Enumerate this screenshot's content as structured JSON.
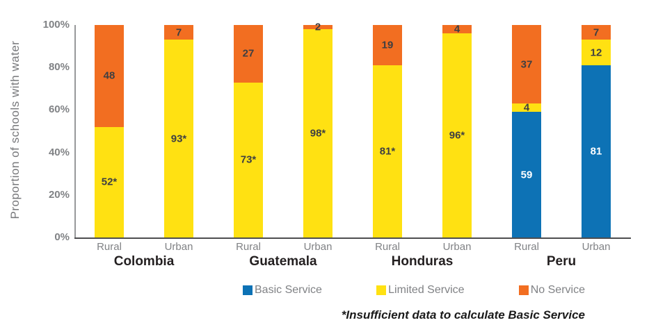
{
  "chart_data": {
    "type": "bar",
    "subtype": "stacked-bar",
    "title": "",
    "xlabel": "",
    "ylabel": "Proportion of schools with water",
    "ylim": [
      0,
      100
    ],
    "grid": false,
    "legend_position": "bottom",
    "yticks": [
      {
        "value": 0,
        "label": "0%"
      },
      {
        "value": 20,
        "label": "20%"
      },
      {
        "value": 40,
        "label": "40%"
      },
      {
        "value": 60,
        "label": "60%"
      },
      {
        "value": 80,
        "label": "80%"
      },
      {
        "value": 100,
        "label": "100%"
      }
    ],
    "series": [
      {
        "name": "Basic Service",
        "color": "#0D72B5",
        "label_color": "#FFFFFF"
      },
      {
        "name": "Limited Service",
        "color": "#FFE112",
        "label_color": "#3E3F42"
      },
      {
        "name": "No Service",
        "color": "#F26E21",
        "label_color": "#3E3F42"
      }
    ],
    "group_labels": [
      "Colombia",
      "Guatemala",
      "Honduras",
      "Peru"
    ],
    "bars": [
      {
        "group": "Colombia",
        "location": "Rural",
        "segments": [
          {
            "series": "Limited Service",
            "value": 52,
            "label": "52*"
          },
          {
            "series": "No Service",
            "value": 48,
            "label": "48"
          }
        ]
      },
      {
        "group": "Colombia",
        "location": "Urban",
        "segments": [
          {
            "series": "Limited Service",
            "value": 93,
            "label": "93*"
          },
          {
            "series": "No Service",
            "value": 7,
            "label": "7"
          }
        ]
      },
      {
        "group": "Guatemala",
        "location": "Rural",
        "segments": [
          {
            "series": "Limited Service",
            "value": 73,
            "label": "73*"
          },
          {
            "series": "No Service",
            "value": 27,
            "label": "27"
          }
        ]
      },
      {
        "group": "Guatemala",
        "location": "Urban",
        "segments": [
          {
            "series": "Limited Service",
            "value": 98,
            "label": "98*"
          },
          {
            "series": "No Service",
            "value": 2,
            "label": "2"
          }
        ]
      },
      {
        "group": "Honduras",
        "location": "Rural",
        "segments": [
          {
            "series": "Limited Service",
            "value": 81,
            "label": "81*"
          },
          {
            "series": "No Service",
            "value": 19,
            "label": "19"
          }
        ]
      },
      {
        "group": "Honduras",
        "location": "Urban",
        "segments": [
          {
            "series": "Limited Service",
            "value": 96,
            "label": "96*"
          },
          {
            "series": "No Service",
            "value": 4,
            "label": "4"
          }
        ]
      },
      {
        "group": "Peru",
        "location": "Rural",
        "segments": [
          {
            "series": "Basic Service",
            "value": 59,
            "label": "59"
          },
          {
            "series": "Limited Service",
            "value": 4,
            "label": "4"
          },
          {
            "series": "No Service",
            "value": 37,
            "label": "37"
          }
        ]
      },
      {
        "group": "Peru",
        "location": "Urban",
        "segments": [
          {
            "series": "Basic Service",
            "value": 81,
            "label": "81"
          },
          {
            "series": "Limited Service",
            "value": 12,
            "label": "12"
          },
          {
            "series": "No Service",
            "value": 7,
            "label": "7"
          }
        ]
      }
    ],
    "footnote": "*Insufficient data to calculate Basic Service"
  }
}
